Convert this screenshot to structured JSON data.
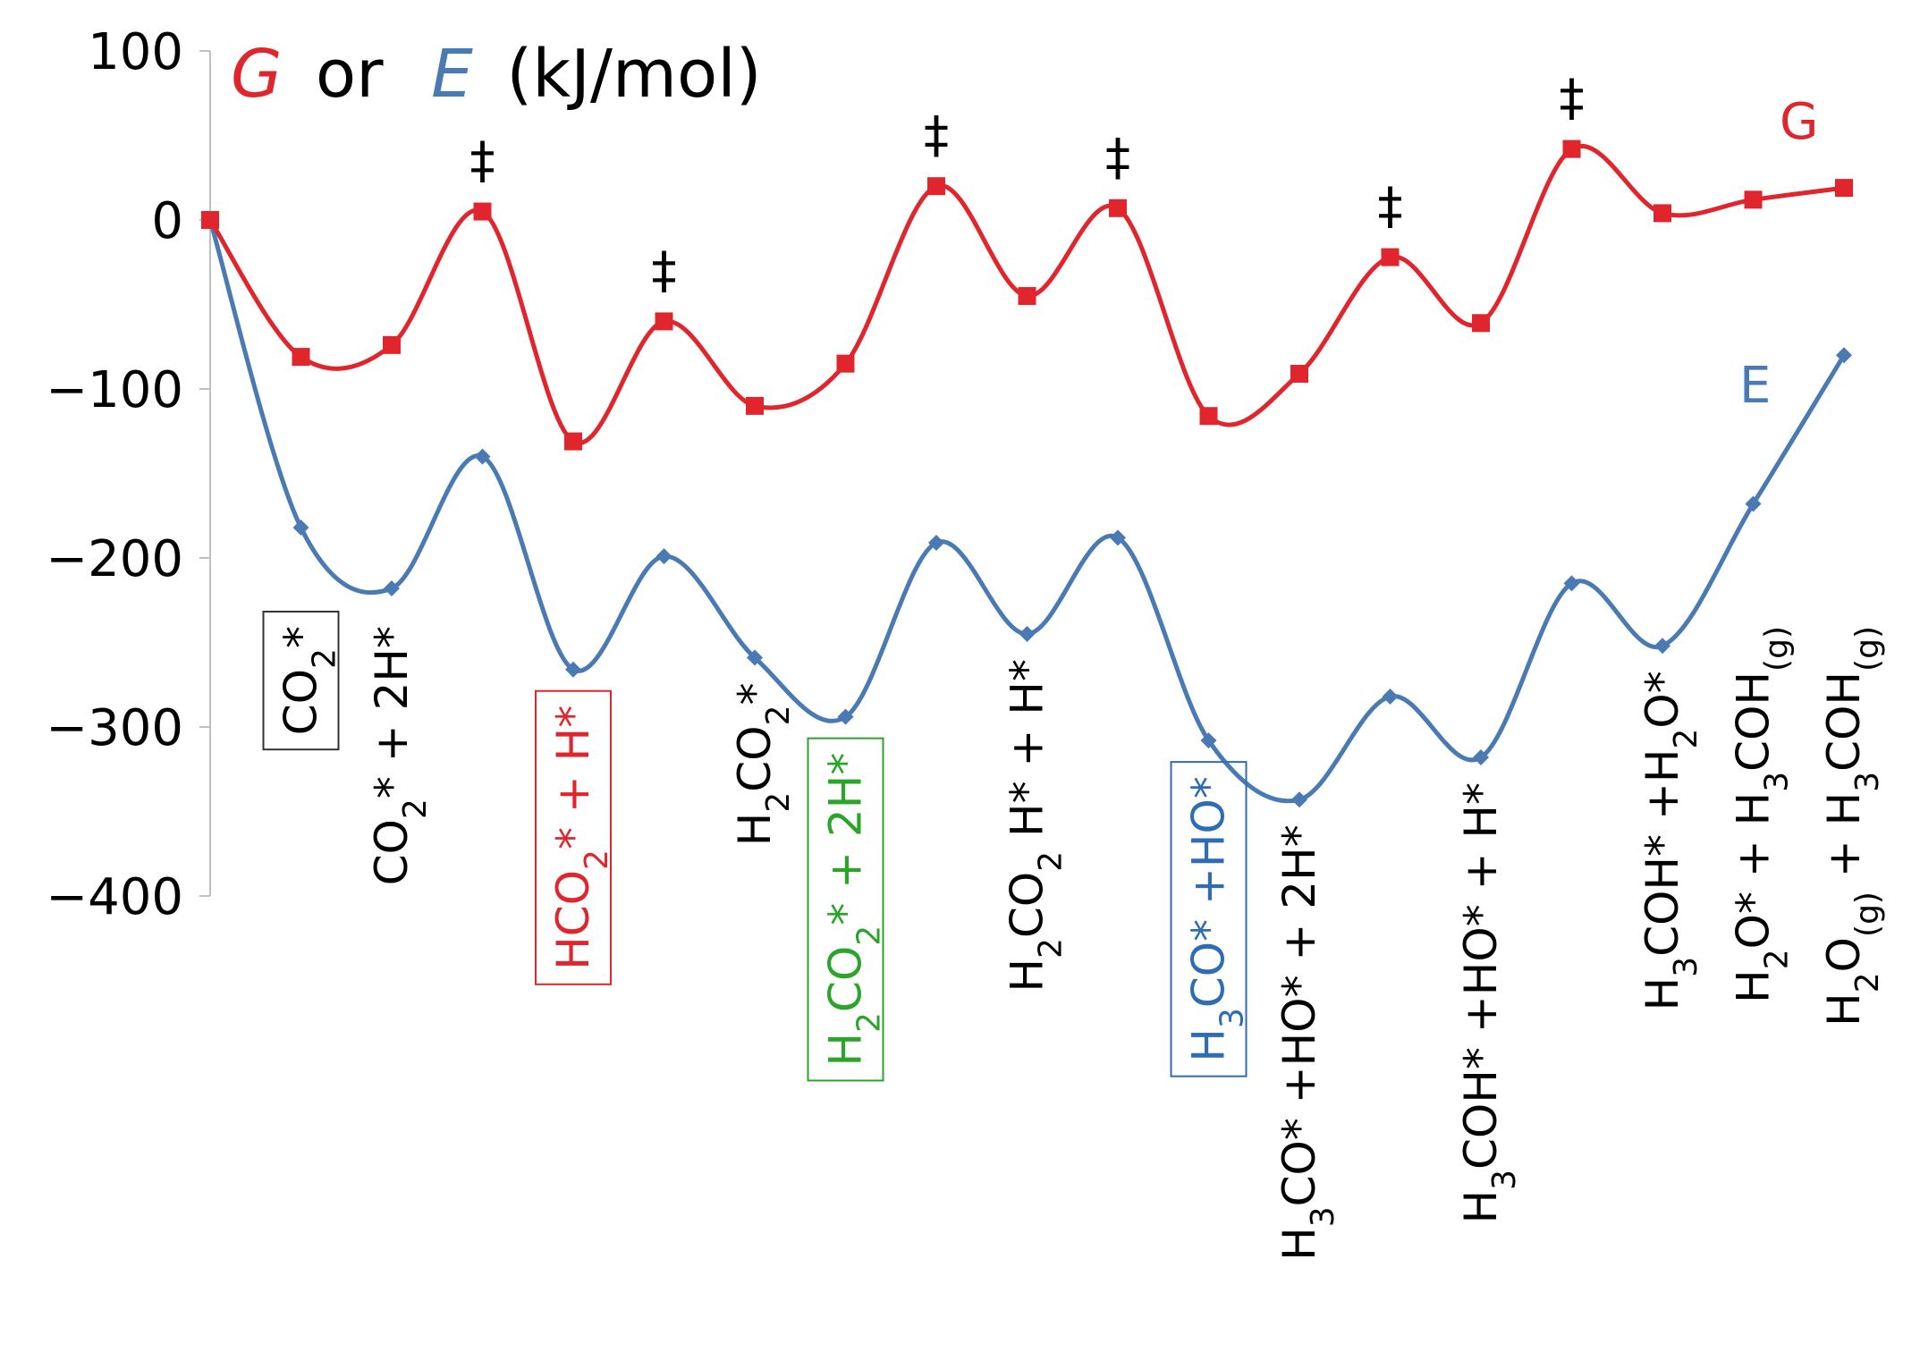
{
  "chart_data": {
    "type": "line",
    "title": {
      "g": "G",
      "or": "or",
      "e": "E",
      "units": "(kJ/mol)"
    },
    "ylim": [
      -400,
      100
    ],
    "yticks": [
      100,
      0,
      -100,
      -200,
      -300,
      -400
    ],
    "ytick_labels": [
      "100",
      "0",
      "−100",
      "−200",
      "−300",
      "−400"
    ],
    "x": [
      0,
      1,
      2,
      3,
      4,
      5,
      6,
      7,
      8,
      9,
      10,
      11,
      12,
      13,
      14,
      15,
      16,
      17,
      18
    ],
    "series": [
      {
        "name": "G",
        "color": "#e0252d",
        "marker": "square",
        "values": [
          0,
          -81,
          -74,
          5,
          -131,
          -60,
          -110,
          -85,
          20,
          -45,
          7,
          -116,
          -91,
          -22,
          -61,
          42,
          4,
          12,
          19
        ]
      },
      {
        "name": "E",
        "color": "#4a7ab3",
        "marker": "diamond",
        "values": [
          0,
          -182,
          -218,
          -140,
          -266,
          -199,
          -259,
          -294,
          -191,
          -245,
          -188,
          -308,
          -343,
          -282,
          -318,
          -215,
          -252,
          -168,
          -80
        ]
      }
    ],
    "ts_marks": [
      {
        "x": 3,
        "label": "‡"
      },
      {
        "x": 5,
        "label": "‡"
      },
      {
        "x": 8,
        "label": "‡"
      },
      {
        "x": 10,
        "label": "‡"
      },
      {
        "x": 13,
        "label": "‡"
      },
      {
        "x": 15,
        "label": "‡"
      }
    ],
    "state_labels": [
      {
        "x": 1,
        "boxed": true,
        "color": "#000000",
        "parts": [
          [
            "CO",
            ""
          ],
          [
            "2",
            "sub"
          ],
          [
            "*",
            ""
          ]
        ]
      },
      {
        "x": 2,
        "boxed": false,
        "color": "#000000",
        "parts": [
          [
            "CO",
            ""
          ],
          [
            "2",
            "sub"
          ],
          [
            "* + 2H*",
            ""
          ]
        ]
      },
      {
        "x": 4,
        "boxed": true,
        "color": "#e0252d",
        "parts": [
          [
            "HCO",
            ""
          ],
          [
            "2",
            "sub"
          ],
          [
            "* + H*",
            ""
          ]
        ]
      },
      {
        "x": 6,
        "boxed": false,
        "color": "#000000",
        "parts": [
          [
            "H",
            ""
          ],
          [
            "2",
            "sub"
          ],
          [
            "CO",
            ""
          ],
          [
            "2",
            "sub"
          ],
          [
            "*",
            ""
          ]
        ]
      },
      {
        "x": 7,
        "boxed": true,
        "color": "#2aa52a",
        "parts": [
          [
            "H",
            ""
          ],
          [
            "2",
            "sub"
          ],
          [
            "CO",
            ""
          ],
          [
            "2",
            "sub"
          ],
          [
            "* + 2H*",
            ""
          ]
        ]
      },
      {
        "x": 9,
        "boxed": false,
        "color": "#000000",
        "parts": [
          [
            "H",
            ""
          ],
          [
            "2",
            "sub"
          ],
          [
            "CO",
            ""
          ],
          [
            "2",
            "sub"
          ],
          [
            " H* + H*",
            ""
          ]
        ]
      },
      {
        "x": 11,
        "boxed": true,
        "color": "#2e6db4",
        "parts": [
          [
            "H",
            ""
          ],
          [
            "3",
            "sub"
          ],
          [
            "CO* +HO*",
            ""
          ]
        ]
      },
      {
        "x": 12,
        "boxed": false,
        "color": "#000000",
        "parts": [
          [
            "H",
            ""
          ],
          [
            "3",
            "sub"
          ],
          [
            "CO* +HO* + 2H*",
            ""
          ]
        ]
      },
      {
        "x": 14,
        "boxed": false,
        "color": "#000000",
        "parts": [
          [
            "H",
            ""
          ],
          [
            "3",
            "sub"
          ],
          [
            "COH* +HO* + H*",
            ""
          ]
        ]
      },
      {
        "x": 16,
        "boxed": false,
        "color": "#000000",
        "parts": [
          [
            "H",
            ""
          ],
          [
            "3",
            "sub"
          ],
          [
            "COH* +H",
            ""
          ],
          [
            "2",
            "sub"
          ],
          [
            "O*",
            ""
          ]
        ]
      },
      {
        "x": 17,
        "boxed": false,
        "color": "#000000",
        "parts": [
          [
            "H",
            ""
          ],
          [
            "2",
            "sub"
          ],
          [
            "O* + H",
            ""
          ],
          [
            "3",
            "sub"
          ],
          [
            "COH",
            ""
          ],
          [
            "(g)",
            "sub"
          ]
        ]
      },
      {
        "x": 18,
        "boxed": false,
        "color": "#000000",
        "parts": [
          [
            "H",
            ""
          ],
          [
            "2",
            "sub"
          ],
          [
            "O",
            ""
          ],
          [
            "(g)",
            "sub"
          ],
          [
            " + H",
            ""
          ],
          [
            "3",
            "sub"
          ],
          [
            "COH",
            ""
          ],
          [
            "(g)",
            "sub"
          ]
        ]
      }
    ]
  }
}
